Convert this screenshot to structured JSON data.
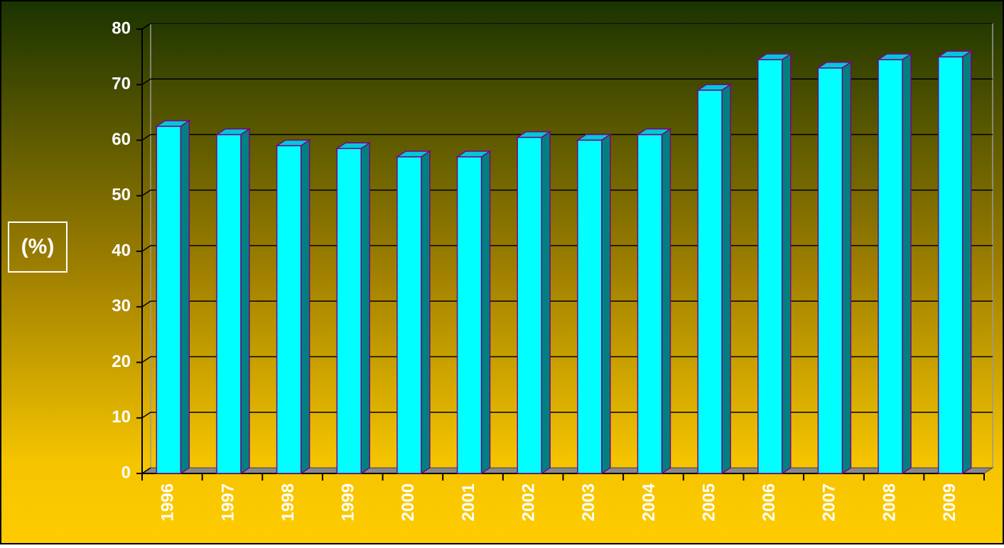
{
  "chart_data": {
    "type": "bar3d",
    "y_label": "(%)",
    "categories": [
      "1996",
      "1997",
      "1998",
      "1999",
      "2000",
      "2001",
      "2002",
      "2003",
      "2004",
      "2005",
      "2006",
      "2007",
      "2008",
      "2009"
    ],
    "values": [
      62.5,
      61,
      59,
      58.5,
      57,
      57,
      60.5,
      60,
      61,
      69,
      74.5,
      73,
      74.5,
      75
    ],
    "color": "#00ffff",
    "ylim": [
      0,
      80
    ],
    "yticks": [
      0,
      10,
      20,
      30,
      40,
      50,
      60,
      70,
      80
    ],
    "grid": true
  }
}
